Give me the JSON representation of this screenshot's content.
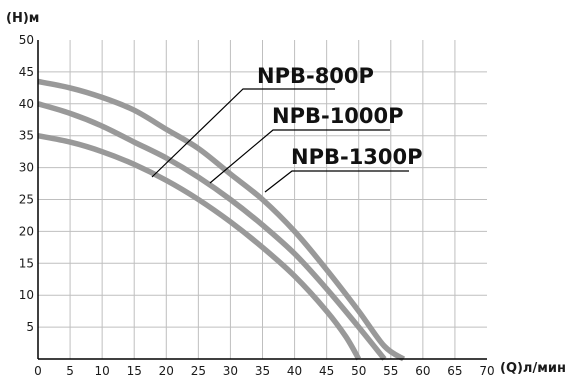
{
  "chart_data": {
    "type": "line",
    "xlabel": "(Q)л/мин",
    "ylabel": "(Н)м",
    "xlim": [
      0,
      70
    ],
    "ylim": [
      0,
      50
    ],
    "x_ticks": [
      0,
      5,
      10,
      15,
      20,
      25,
      30,
      35,
      40,
      45,
      50,
      55,
      60,
      65,
      70
    ],
    "y_ticks": [
      5,
      10,
      15,
      20,
      25,
      30,
      35,
      40,
      45,
      50
    ],
    "grid": true,
    "series": [
      {
        "name": "NPB-800P",
        "points": [
          [
            0,
            35
          ],
          [
            5,
            34
          ],
          [
            10,
            32.5
          ],
          [
            15,
            30.5
          ],
          [
            20,
            28
          ],
          [
            25,
            25
          ],
          [
            30,
            21.5
          ],
          [
            35,
            17.5
          ],
          [
            40,
            13
          ],
          [
            45,
            7.5
          ],
          [
            48,
            3.5
          ],
          [
            50,
            0
          ]
        ]
      },
      {
        "name": "NPB-1000P",
        "points": [
          [
            0,
            40
          ],
          [
            5,
            38.5
          ],
          [
            10,
            36.5
          ],
          [
            15,
            34
          ],
          [
            20,
            31.5
          ],
          [
            25,
            28.5
          ],
          [
            30,
            25
          ],
          [
            35,
            21
          ],
          [
            40,
            16.5
          ],
          [
            45,
            11
          ],
          [
            50,
            5
          ],
          [
            54,
            0
          ]
        ]
      },
      {
        "name": "NPB-1300P",
        "points": [
          [
            0,
            43.5
          ],
          [
            5,
            42.5
          ],
          [
            10,
            41
          ],
          [
            15,
            39
          ],
          [
            20,
            36
          ],
          [
            25,
            33
          ],
          [
            30,
            29
          ],
          [
            35,
            25
          ],
          [
            40,
            20
          ],
          [
            45,
            14
          ],
          [
            50,
            7.5
          ],
          [
            54,
            2
          ],
          [
            57,
            0
          ]
        ]
      }
    ],
    "colors": {
      "curve": "#999999",
      "grid": "#bfbfbf",
      "frame": "#000000",
      "text": "#1a1a1a"
    }
  }
}
